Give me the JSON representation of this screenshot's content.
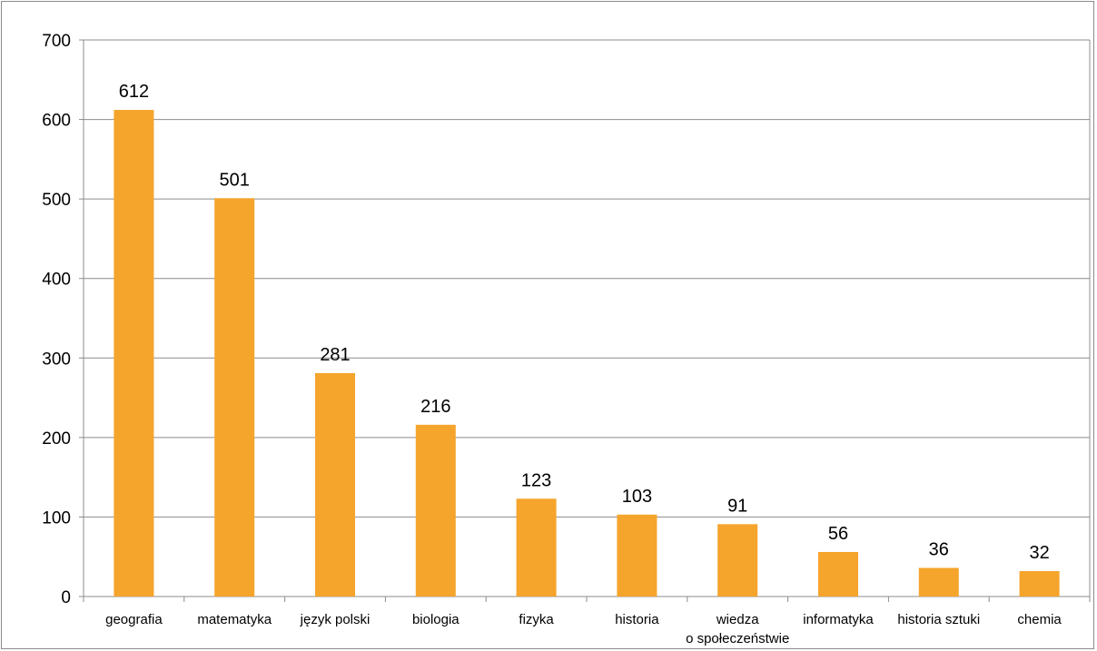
{
  "chart_data": {
    "type": "bar",
    "categories": [
      [
        "geografia"
      ],
      [
        "matematyka"
      ],
      [
        "język polski"
      ],
      [
        "biologia"
      ],
      [
        "fizyka"
      ],
      [
        "historia"
      ],
      [
        "wiedza",
        "o społeczeństwie"
      ],
      [
        "informatyka"
      ],
      [
        "historia sztuki"
      ],
      [
        "chemia"
      ]
    ],
    "values": [
      612,
      501,
      281,
      216,
      123,
      103,
      91,
      56,
      36,
      32
    ],
    "ylim": [
      0,
      700
    ],
    "yticks": [
      0,
      100,
      200,
      300,
      400,
      500,
      600,
      700
    ],
    "grid": true,
    "legend": "none",
    "bar_color": "#F5A42C",
    "grid_color": "#8c8c8c"
  }
}
